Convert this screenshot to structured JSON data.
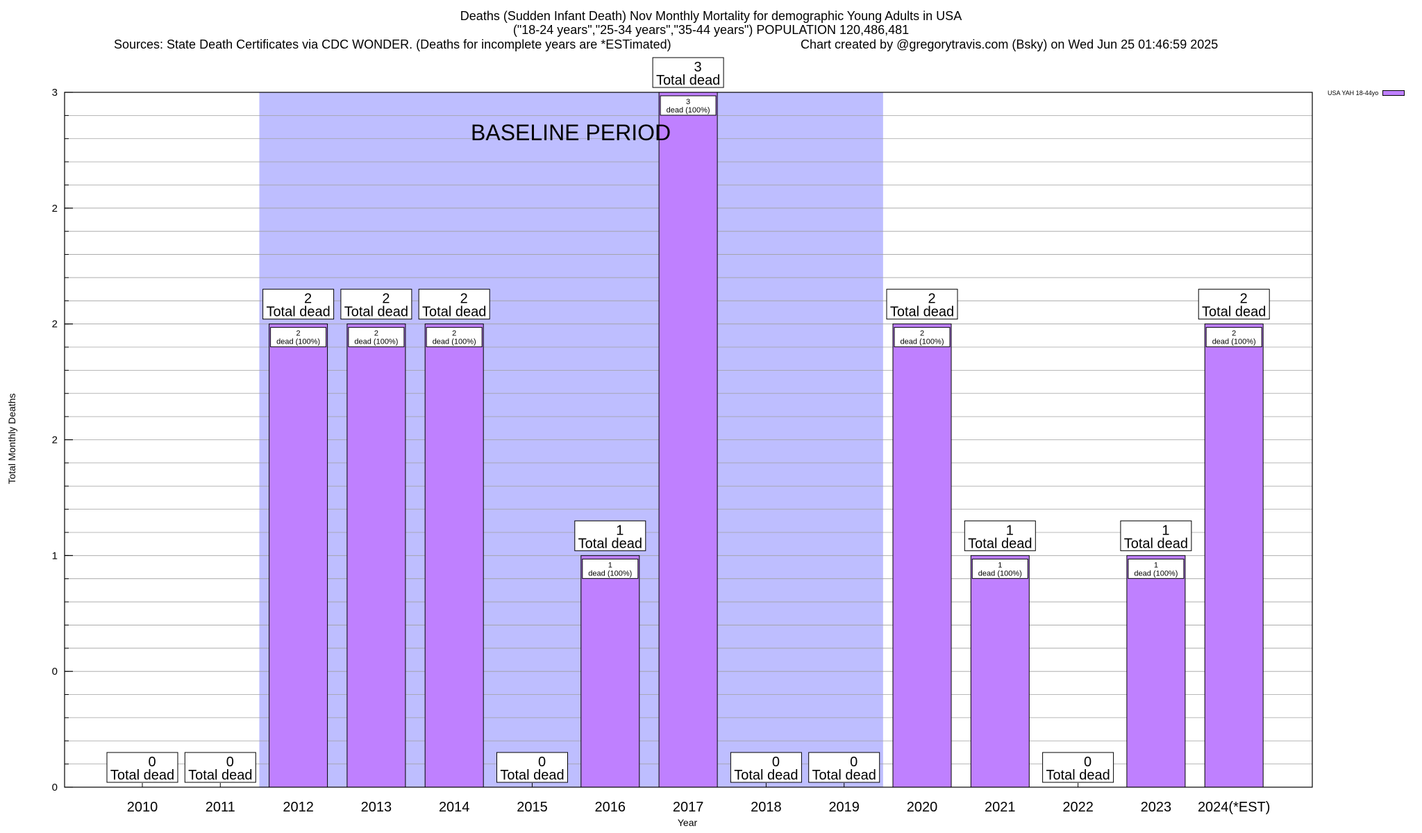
{
  "chart_data": {
    "type": "bar",
    "title": "Deaths (Sudden Infant Death) Nov Monthly Mortality for demographic Young Adults in USA",
    "subtitle": "(\"18-24 years\",\"25-34 years\",\"35-44 years\") POPULATION 120,486,481",
    "source": "Sources: State Death Certificates via CDC WONDER. (Deaths for incomplete years are *ESTimated)",
    "credit": "Chart created by @gregorytravis.com (Bsky) on Wed Jun 25 01:46:59 2025",
    "xlabel": "Year",
    "ylabel": "Total Monthly Deaths",
    "ylim": [
      0,
      3
    ],
    "y_ticks": [
      0,
      0.5,
      1,
      1.5,
      2,
      2.5,
      3
    ],
    "y_tick_labels": [
      "0",
      "0",
      "1",
      "2",
      "2",
      "2",
      "3"
    ],
    "categories": [
      "2010",
      "2011",
      "2012",
      "2013",
      "2014",
      "2015",
      "2016",
      "2017",
      "2018",
      "2019",
      "2020",
      "2021",
      "2022",
      "2023",
      "2024(*EST)"
    ],
    "series": [
      {
        "name": "USA YAH 18-44yo",
        "values": [
          0,
          0,
          2,
          2,
          2,
          0,
          1,
          3,
          0,
          0,
          2,
          1,
          0,
          1,
          2
        ]
      }
    ],
    "total_label": "Total dead",
    "inner_label": "dead (100%)",
    "baseline": {
      "label": "BASELINE PERIOD",
      "start": "2012",
      "end": "2019"
    },
    "legend_position": "top-right",
    "grid": true,
    "colors": {
      "bar": "#bf80ff",
      "baseline": "#bebeff",
      "axis": "#000000",
      "grid": "#a0a0a0"
    }
  }
}
